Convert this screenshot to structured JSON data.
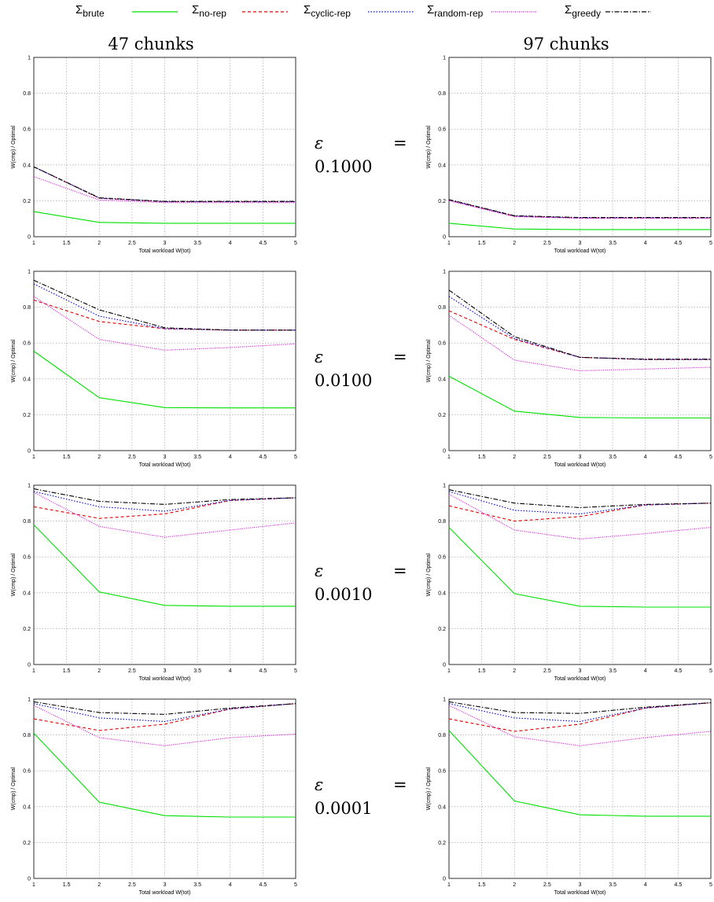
{
  "legend": [
    {
      "name": "brute",
      "symbol": "Σ",
      "sub": "brute",
      "color": "#00e000",
      "dash": ""
    },
    {
      "name": "no-rep",
      "symbol": "Σ",
      "sub": "no-rep",
      "color": "#e00000",
      "dash": "4,3"
    },
    {
      "name": "cyclic-rep",
      "symbol": "Σ",
      "sub": "cyclic-rep",
      "color": "#0000e0",
      "dash": "1.5,2"
    },
    {
      "name": "random-rep",
      "symbol": "Σ",
      "sub": "random-rep",
      "color": "#e000e0",
      "dash": "1,1.5"
    },
    {
      "name": "greedy",
      "symbol": "Σ",
      "sub": "greedy",
      "color": "#000000",
      "dash": "6,2,1.5,2"
    }
  ],
  "columns": [
    "47 chunks",
    "97 chunks"
  ],
  "rows": [
    {
      "eps_symbol": "ε",
      "eq": "=",
      "value": "0.1000"
    },
    {
      "eps_symbol": "ε",
      "eq": "=",
      "value": "0.0100"
    },
    {
      "eps_symbol": "ε",
      "eq": "=",
      "value": "0.0010"
    },
    {
      "eps_symbol": "ε",
      "eq": "=",
      "value": "0.0001"
    }
  ],
  "axes": {
    "xlabel": "Total workload W(tot)",
    "ylabel": "W(cmp) / Optimal",
    "xlim": [
      1,
      5
    ],
    "ylim": [
      0,
      1
    ],
    "xticks": [
      "1",
      "1.5",
      "2",
      "2.5",
      "3",
      "3.5",
      "4",
      "4.5",
      "5"
    ],
    "yticks": [
      "0",
      "0.2",
      "0.4",
      "0.6",
      "0.8",
      "1"
    ],
    "grid": true
  },
  "chart_data": [
    {
      "type": "line",
      "panel": "47 chunks, ε = 0.1000",
      "x": [
        1,
        2,
        3,
        4,
        5
      ],
      "ylim": [
        0,
        1
      ],
      "xlim": [
        1,
        5
      ],
      "series": [
        {
          "name": "brute",
          "values": [
            0.14,
            0.08,
            0.075,
            0.075,
            0.075
          ]
        },
        {
          "name": "no-rep",
          "values": [
            0.39,
            0.215,
            0.195,
            0.195,
            0.195
          ]
        },
        {
          "name": "cyclic-rep",
          "values": [
            0.39,
            0.215,
            0.195,
            0.195,
            0.195
          ]
        },
        {
          "name": "random-rep",
          "values": [
            0.335,
            0.205,
            0.19,
            0.19,
            0.19
          ]
        },
        {
          "name": "greedy",
          "values": [
            0.39,
            0.217,
            0.197,
            0.197,
            0.197
          ]
        }
      ]
    },
    {
      "type": "line",
      "panel": "97 chunks, ε = 0.1000",
      "x": [
        1,
        2,
        3,
        4,
        5
      ],
      "ylim": [
        0,
        1
      ],
      "xlim": [
        1,
        5
      ],
      "series": [
        {
          "name": "brute",
          "values": [
            0.075,
            0.043,
            0.04,
            0.04,
            0.04
          ]
        },
        {
          "name": "no-rep",
          "values": [
            0.205,
            0.115,
            0.105,
            0.105,
            0.105
          ]
        },
        {
          "name": "cyclic-rep",
          "values": [
            0.205,
            0.115,
            0.105,
            0.105,
            0.105
          ]
        },
        {
          "name": "random-rep",
          "values": [
            0.2,
            0.112,
            0.103,
            0.103,
            0.103
          ]
        },
        {
          "name": "greedy",
          "values": [
            0.207,
            0.117,
            0.107,
            0.107,
            0.107
          ]
        }
      ]
    },
    {
      "type": "line",
      "panel": "47 chunks, ε = 0.0100",
      "x": [
        1,
        2,
        3,
        4,
        5
      ],
      "ylim": [
        0,
        1
      ],
      "xlim": [
        1,
        5
      ],
      "series": [
        {
          "name": "brute",
          "values": [
            0.555,
            0.295,
            0.24,
            0.238,
            0.238
          ]
        },
        {
          "name": "no-rep",
          "values": [
            0.84,
            0.72,
            0.68,
            0.672,
            0.672
          ]
        },
        {
          "name": "cyclic-rep",
          "values": [
            0.93,
            0.75,
            0.68,
            0.672,
            0.672
          ]
        },
        {
          "name": "random-rep",
          "values": [
            0.86,
            0.62,
            0.56,
            0.575,
            0.595
          ]
        },
        {
          "name": "greedy",
          "values": [
            0.95,
            0.785,
            0.685,
            0.672,
            0.672
          ]
        }
      ]
    },
    {
      "type": "line",
      "panel": "97 chunks, ε = 0.0100",
      "x": [
        1,
        2,
        3,
        4,
        5
      ],
      "ylim": [
        0,
        1
      ],
      "xlim": [
        1,
        5
      ],
      "series": [
        {
          "name": "brute",
          "values": [
            0.415,
            0.22,
            0.185,
            0.182,
            0.182
          ]
        },
        {
          "name": "no-rep",
          "values": [
            0.78,
            0.62,
            0.52,
            0.508,
            0.508
          ]
        },
        {
          "name": "cyclic-rep",
          "values": [
            0.86,
            0.625,
            0.52,
            0.508,
            0.508
          ]
        },
        {
          "name": "random-rep",
          "values": [
            0.755,
            0.505,
            0.445,
            0.455,
            0.465
          ]
        },
        {
          "name": "greedy",
          "values": [
            0.895,
            0.635,
            0.52,
            0.51,
            0.51
          ]
        }
      ]
    },
    {
      "type": "line",
      "panel": "47 chunks, ε = 0.0010",
      "x": [
        1,
        2,
        3,
        4,
        5
      ],
      "ylim": [
        0,
        1
      ],
      "xlim": [
        1,
        5
      ],
      "series": [
        {
          "name": "brute",
          "values": [
            0.78,
            0.405,
            0.33,
            0.325,
            0.325
          ]
        },
        {
          "name": "no-rep",
          "values": [
            0.88,
            0.815,
            0.84,
            0.915,
            0.93
          ]
        },
        {
          "name": "cyclic-rep",
          "values": [
            0.965,
            0.88,
            0.855,
            0.915,
            0.93
          ]
        },
        {
          "name": "random-rep",
          "values": [
            0.96,
            0.77,
            0.71,
            0.75,
            0.79
          ]
        },
        {
          "name": "greedy",
          "values": [
            0.98,
            0.91,
            0.893,
            0.92,
            0.93
          ]
        }
      ]
    },
    {
      "type": "line",
      "panel": "97 chunks, ε = 0.0010",
      "x": [
        1,
        2,
        3,
        4,
        5
      ],
      "ylim": [
        0,
        1
      ],
      "xlim": [
        1,
        5
      ],
      "series": [
        {
          "name": "brute",
          "values": [
            0.765,
            0.395,
            0.325,
            0.32,
            0.32
          ]
        },
        {
          "name": "no-rep",
          "values": [
            0.885,
            0.8,
            0.825,
            0.89,
            0.9
          ]
        },
        {
          "name": "cyclic-rep",
          "values": [
            0.965,
            0.86,
            0.84,
            0.89,
            0.9
          ]
        },
        {
          "name": "random-rep",
          "values": [
            0.95,
            0.75,
            0.7,
            0.73,
            0.765
          ]
        },
        {
          "name": "greedy",
          "values": [
            0.975,
            0.9,
            0.875,
            0.893,
            0.9
          ]
        }
      ]
    },
    {
      "type": "line",
      "panel": "47 chunks, ε = 0.0001",
      "x": [
        1,
        2,
        3,
        4,
        5
      ],
      "ylim": [
        0,
        1
      ],
      "xlim": [
        1,
        5
      ],
      "series": [
        {
          "name": "brute",
          "values": [
            0.81,
            0.425,
            0.35,
            0.342,
            0.342
          ]
        },
        {
          "name": "no-rep",
          "values": [
            0.89,
            0.825,
            0.86,
            0.945,
            0.975
          ]
        },
        {
          "name": "cyclic-rep",
          "values": [
            0.975,
            0.895,
            0.875,
            0.945,
            0.975
          ]
        },
        {
          "name": "random-rep",
          "values": [
            0.965,
            0.785,
            0.74,
            0.785,
            0.805
          ]
        },
        {
          "name": "greedy",
          "values": [
            0.985,
            0.925,
            0.915,
            0.95,
            0.975
          ]
        }
      ]
    },
    {
      "type": "line",
      "panel": "97 chunks, ε = 0.0001",
      "x": [
        1,
        2,
        3,
        4,
        5
      ],
      "ylim": [
        0,
        1
      ],
      "xlim": [
        1,
        5
      ],
      "series": [
        {
          "name": "brute",
          "values": [
            0.825,
            0.432,
            0.355,
            0.347,
            0.347
          ]
        },
        {
          "name": "no-rep",
          "values": [
            0.89,
            0.82,
            0.86,
            0.95,
            0.98
          ]
        },
        {
          "name": "cyclic-rep",
          "values": [
            0.975,
            0.895,
            0.875,
            0.95,
            0.98
          ]
        },
        {
          "name": "random-rep",
          "values": [
            0.965,
            0.79,
            0.74,
            0.785,
            0.82
          ]
        },
        {
          "name": "greedy",
          "values": [
            0.985,
            0.925,
            0.92,
            0.955,
            0.98
          ]
        }
      ]
    }
  ]
}
